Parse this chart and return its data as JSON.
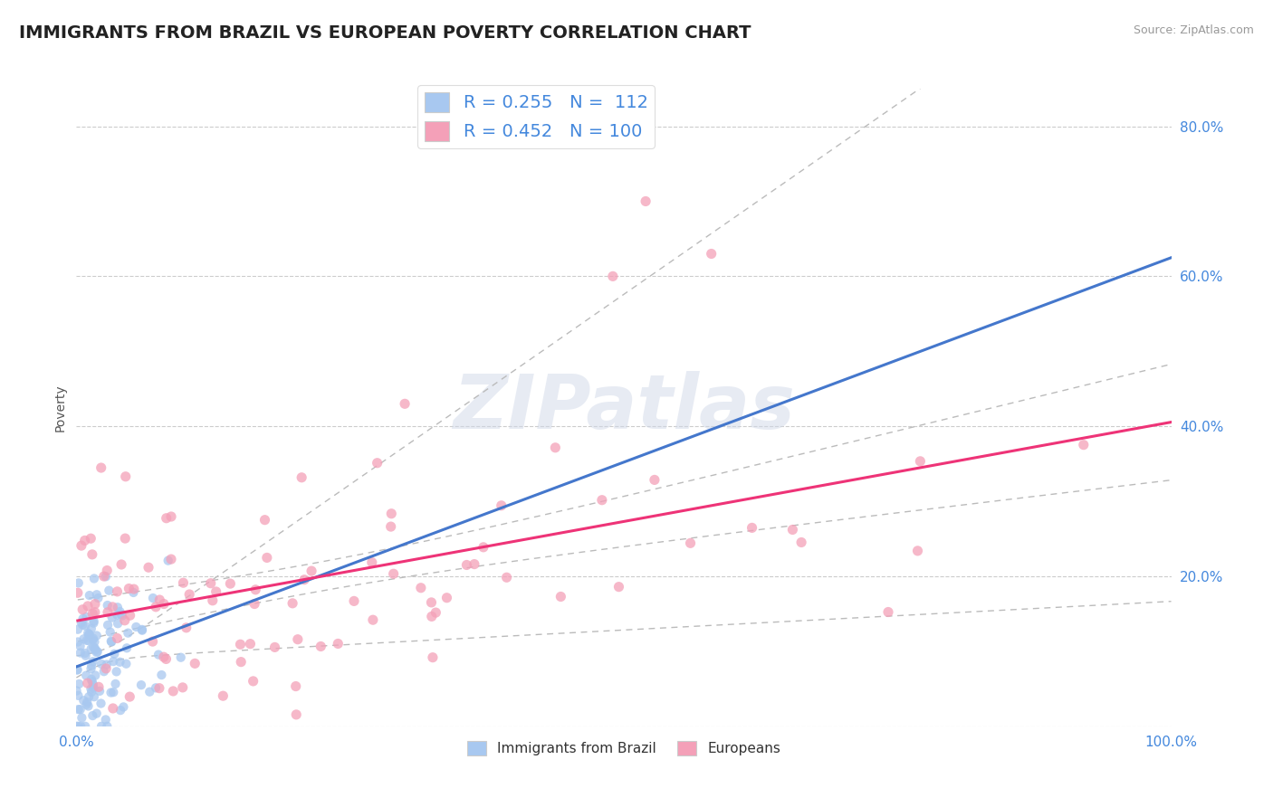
{
  "title": "IMMIGRANTS FROM BRAZIL VS EUROPEAN POVERTY CORRELATION CHART",
  "source": "Source: ZipAtlas.com",
  "ylabel": "Poverty",
  "xlim": [
    0,
    1.0
  ],
  "ylim": [
    0,
    0.85
  ],
  "yticks": [
    0.0,
    0.2,
    0.4,
    0.6,
    0.8
  ],
  "ytick_labels": [
    "",
    "20.0%",
    "40.0%",
    "60.0%",
    "80.0%"
  ],
  "xticks": [
    0.0,
    1.0
  ],
  "xtick_labels": [
    "0.0%",
    "100.0%"
  ],
  "legend_R1": "0.255",
  "legend_N1": "112",
  "legend_R2": "0.452",
  "legend_N2": "100",
  "color_brazil": "#a8c8f0",
  "color_europe": "#f4a0b8",
  "color_line_brazil": "#4477cc",
  "color_line_europe": "#ee3377",
  "color_text_blue": "#4488dd",
  "color_dashed": "#bbbbbb",
  "watermark_text": "ZIPatlas",
  "background_color": "#ffffff",
  "grid_color": "#cccccc",
  "title_fontsize": 14,
  "axis_fontsize": 11,
  "legend_fontsize": 14
}
